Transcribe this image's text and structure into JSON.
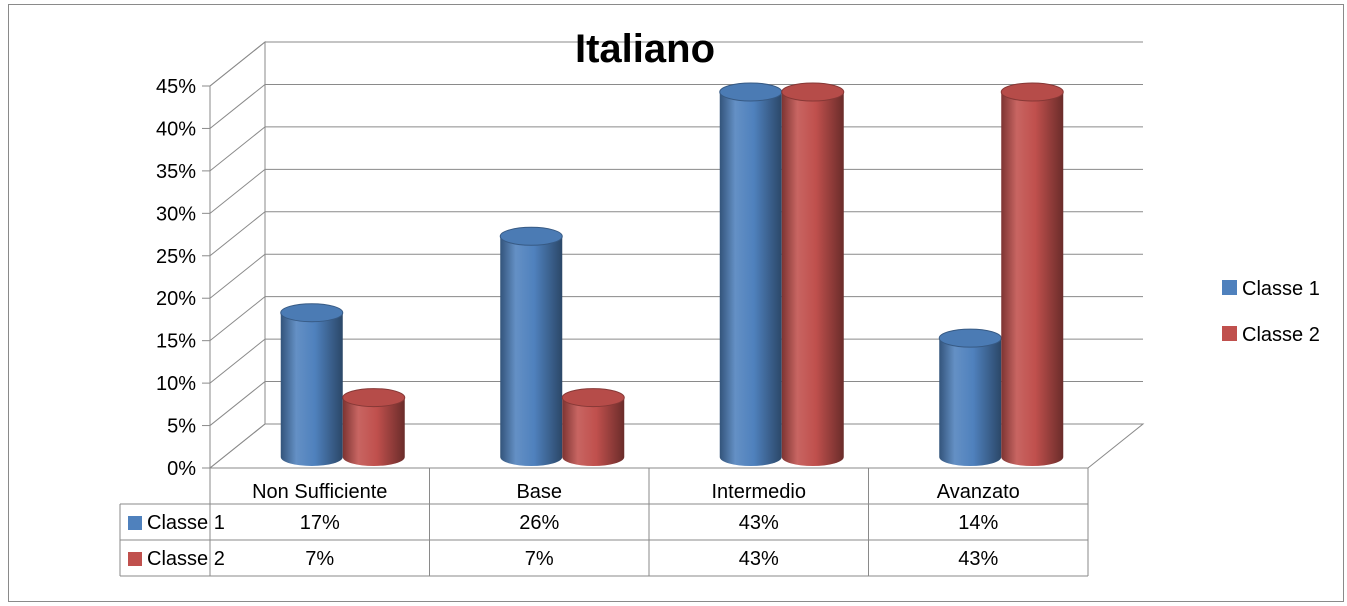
{
  "chart_data": {
    "type": "bar",
    "title": "Italiano",
    "categories": [
      "Non Sufficiente",
      "Base",
      "Intermedio",
      "Avanzato"
    ],
    "series": [
      {
        "name": "Classe 1",
        "color": "#4f81bd",
        "values": [
          17,
          26,
          43,
          14
        ],
        "labels": [
          "17%",
          "26%",
          "43%",
          "14%"
        ]
      },
      {
        "name": "Classe 2",
        "color": "#c0504d",
        "values": [
          7,
          7,
          43,
          43
        ],
        "labels": [
          "7%",
          "7%",
          "43%",
          "43%"
        ]
      }
    ],
    "yticks": [
      "0%",
      "5%",
      "10%",
      "15%",
      "20%",
      "25%",
      "30%",
      "35%",
      "40%",
      "45%"
    ],
    "ylim": [
      0,
      45
    ],
    "grid": true,
    "legend": "right",
    "data_table": true,
    "style": "3d-cylinder"
  }
}
